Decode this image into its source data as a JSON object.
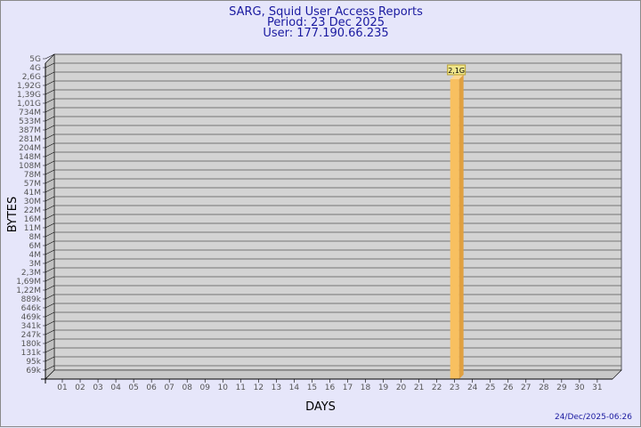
{
  "chart_data": {
    "type": "bar",
    "title": "SARG, Squid User Access Reports",
    "subtitle": [
      "Period: 23 Dec 2025",
      "User: 177.190.66.235"
    ],
    "xlabel": "DAYS",
    "ylabel": "BYTES",
    "yscale": "log",
    "ytick_labels": [
      "5G",
      "4G",
      "2,6G",
      "1,92G",
      "1,39G",
      "1,01G",
      "734M",
      "533M",
      "387M",
      "281M",
      "204M",
      "148M",
      "108M",
      "78M",
      "57M",
      "41M",
      "30M",
      "22M",
      "16M",
      "11M",
      "8M",
      "6M",
      "4M",
      "3M",
      "2,3M",
      "1,69M",
      "1,22M",
      "889k",
      "646k",
      "469k",
      "341k",
      "247k",
      "180k",
      "131k",
      "95k",
      "69k"
    ],
    "categories": [
      "01",
      "02",
      "03",
      "04",
      "05",
      "06",
      "07",
      "08",
      "09",
      "10",
      "11",
      "12",
      "13",
      "14",
      "15",
      "16",
      "17",
      "18",
      "19",
      "20",
      "21",
      "22",
      "23",
      "24",
      "25",
      "26",
      "27",
      "28",
      "29",
      "30",
      "31"
    ],
    "bars": [
      {
        "day": "23",
        "value": 2100000000,
        "label": "2,1G"
      }
    ],
    "grid": true,
    "colors": {
      "bar": "#f8c060",
      "bar_side": "#e0a040",
      "panel": "#d3d3d3",
      "label_bg": "#f0e68c"
    }
  },
  "footer": {
    "timestamp": "24/Dec/2025-06:26"
  }
}
